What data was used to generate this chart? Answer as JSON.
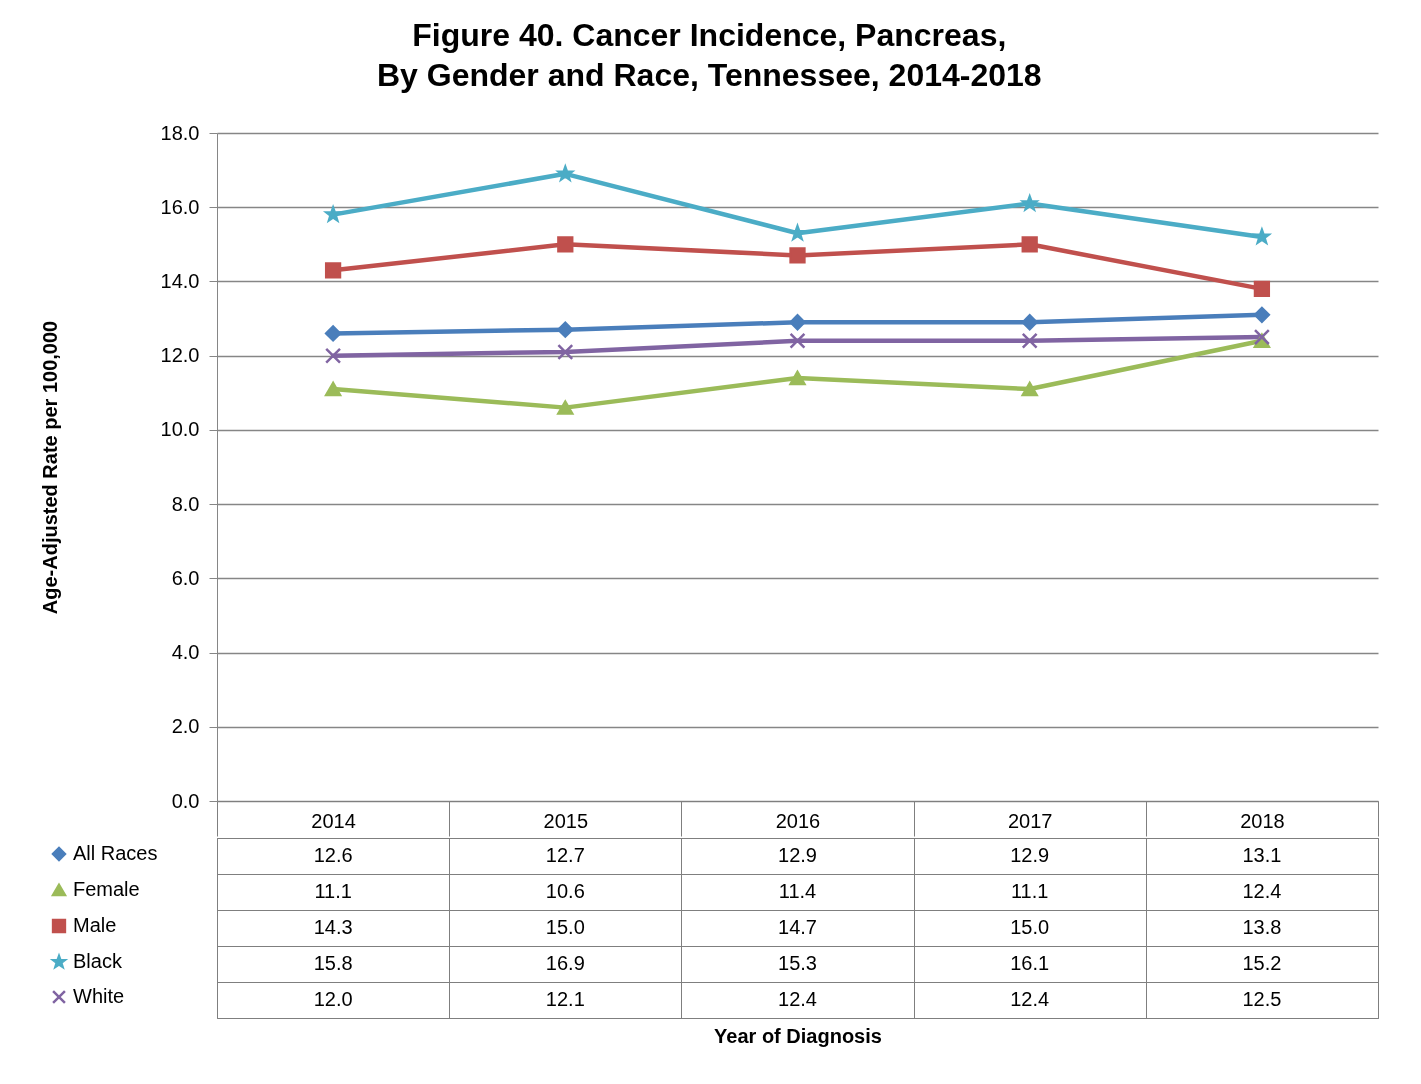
{
  "chart_data": {
    "type": "line",
    "title": "Figure 40. Cancer Incidence, Pancreas,\nBy Gender and Race, Tennessee, 2014-2018",
    "annotations": [
      "Year of Diagnosis"
    ],
    "ylabel": "Age-Adjusted Rate per 100,000",
    "categories": [
      "2014",
      "2015",
      "2016",
      "2017",
      "2018"
    ],
    "series": [
      {
        "name": "All Races",
        "color": "#4a7ebb",
        "marker": "diamond",
        "values": [
          12.6,
          12.7,
          12.9,
          12.9,
          13.1
        ],
        "value_labels": [
          "12.6",
          "12.7",
          "12.9",
          "12.9",
          "13.1"
        ]
      },
      {
        "name": "Female",
        "color": "#9bbb59",
        "marker": "triangle",
        "values": [
          11.1,
          10.6,
          11.4,
          11.1,
          12.4
        ],
        "value_labels": [
          "11.1",
          "10.6",
          "11.4",
          "11.1",
          "12.4"
        ]
      },
      {
        "name": "Male",
        "color": "#c0504d",
        "marker": "square",
        "values": [
          14.3,
          15.0,
          14.7,
          15.0,
          13.8
        ],
        "value_labels": [
          "14.3",
          "15.0",
          "14.7",
          "15.0",
          "13.8"
        ]
      },
      {
        "name": "Black",
        "color": "#4bacc6",
        "marker": "star",
        "values": [
          15.8,
          16.9,
          15.3,
          16.1,
          15.2
        ],
        "value_labels": [
          "15.8",
          "16.9",
          "15.3",
          "16.1",
          "15.2"
        ]
      },
      {
        "name": "White",
        "color": "#8064a2",
        "marker": "cross",
        "values": [
          12.0,
          12.1,
          12.4,
          12.4,
          12.5
        ],
        "value_labels": [
          "12.0",
          "12.1",
          "12.4",
          "12.4",
          "12.5"
        ]
      }
    ],
    "ylim": [
      0,
      18
    ],
    "yticks": [
      {
        "value": 0,
        "label": "0.0"
      },
      {
        "value": 2,
        "label": "2.0"
      },
      {
        "value": 4,
        "label": "4.0"
      },
      {
        "value": 6,
        "label": "6.0"
      },
      {
        "value": 8,
        "label": "8.0"
      },
      {
        "value": 10,
        "label": "10.0"
      },
      {
        "value": 12,
        "label": "12.0"
      },
      {
        "value": 14,
        "label": "14.0"
      },
      {
        "value": 16,
        "label": "16.0"
      },
      {
        "value": 18,
        "label": "18.0"
      }
    ],
    "grid": "y",
    "legend": "bottom left",
    "line_style": "solid"
  }
}
